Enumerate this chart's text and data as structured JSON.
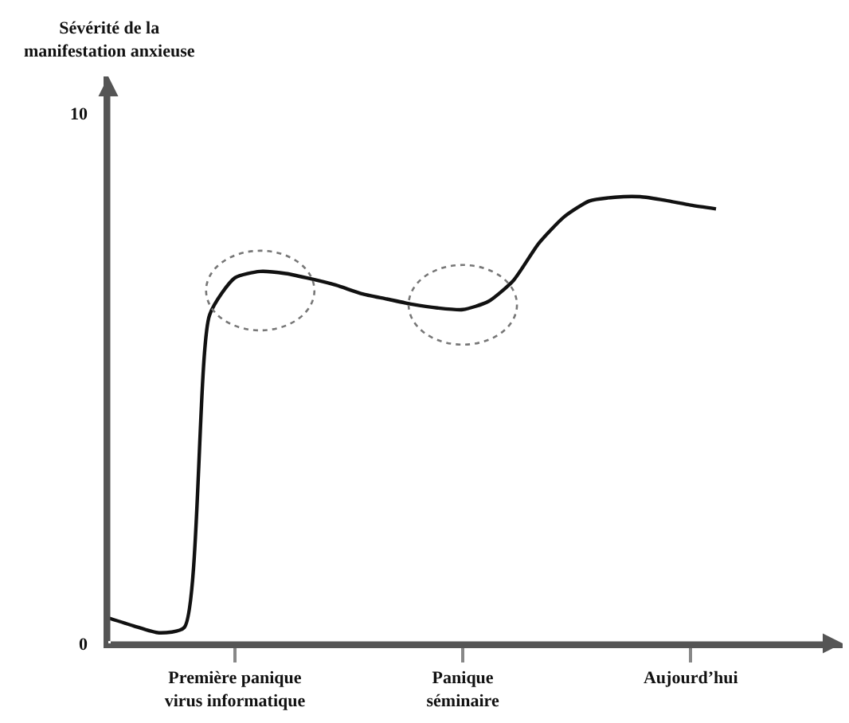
{
  "chart_data": {
    "type": "line",
    "ylabel": "Sévérité de la\nmanifestation anxieuse",
    "categories": [
      null,
      null,
      null,
      null,
      null,
      "Première panique\nvirus informatique",
      null,
      null,
      null,
      null,
      null,
      null,
      null,
      null,
      "Panique\nséminaire",
      null,
      null,
      null,
      null,
      null,
      null,
      null,
      null,
      "Aujourd’hui",
      null,
      null,
      null,
      null,
      null,
      null
    ],
    "series": [
      {
        "color": "#111111",
        "values": [
          0.48,
          0.33,
          0.2,
          0.3,
          6.2,
          6.9,
          7.02,
          6.98,
          6.88,
          6.76,
          6.6,
          6.5,
          6.4,
          6.33,
          6.3,
          6.45,
          6.85,
          7.55,
          8.05,
          8.35,
          8.42,
          8.43,
          8.36,
          8.27,
          8.2,
          null,
          null,
          null,
          null,
          null
        ]
      }
    ],
    "ylim": [
      0,
      10.7
    ],
    "yticks": [
      0,
      10
    ],
    "grid": false,
    "legend": false,
    "marker": "none",
    "line_style": "solid"
  }
}
